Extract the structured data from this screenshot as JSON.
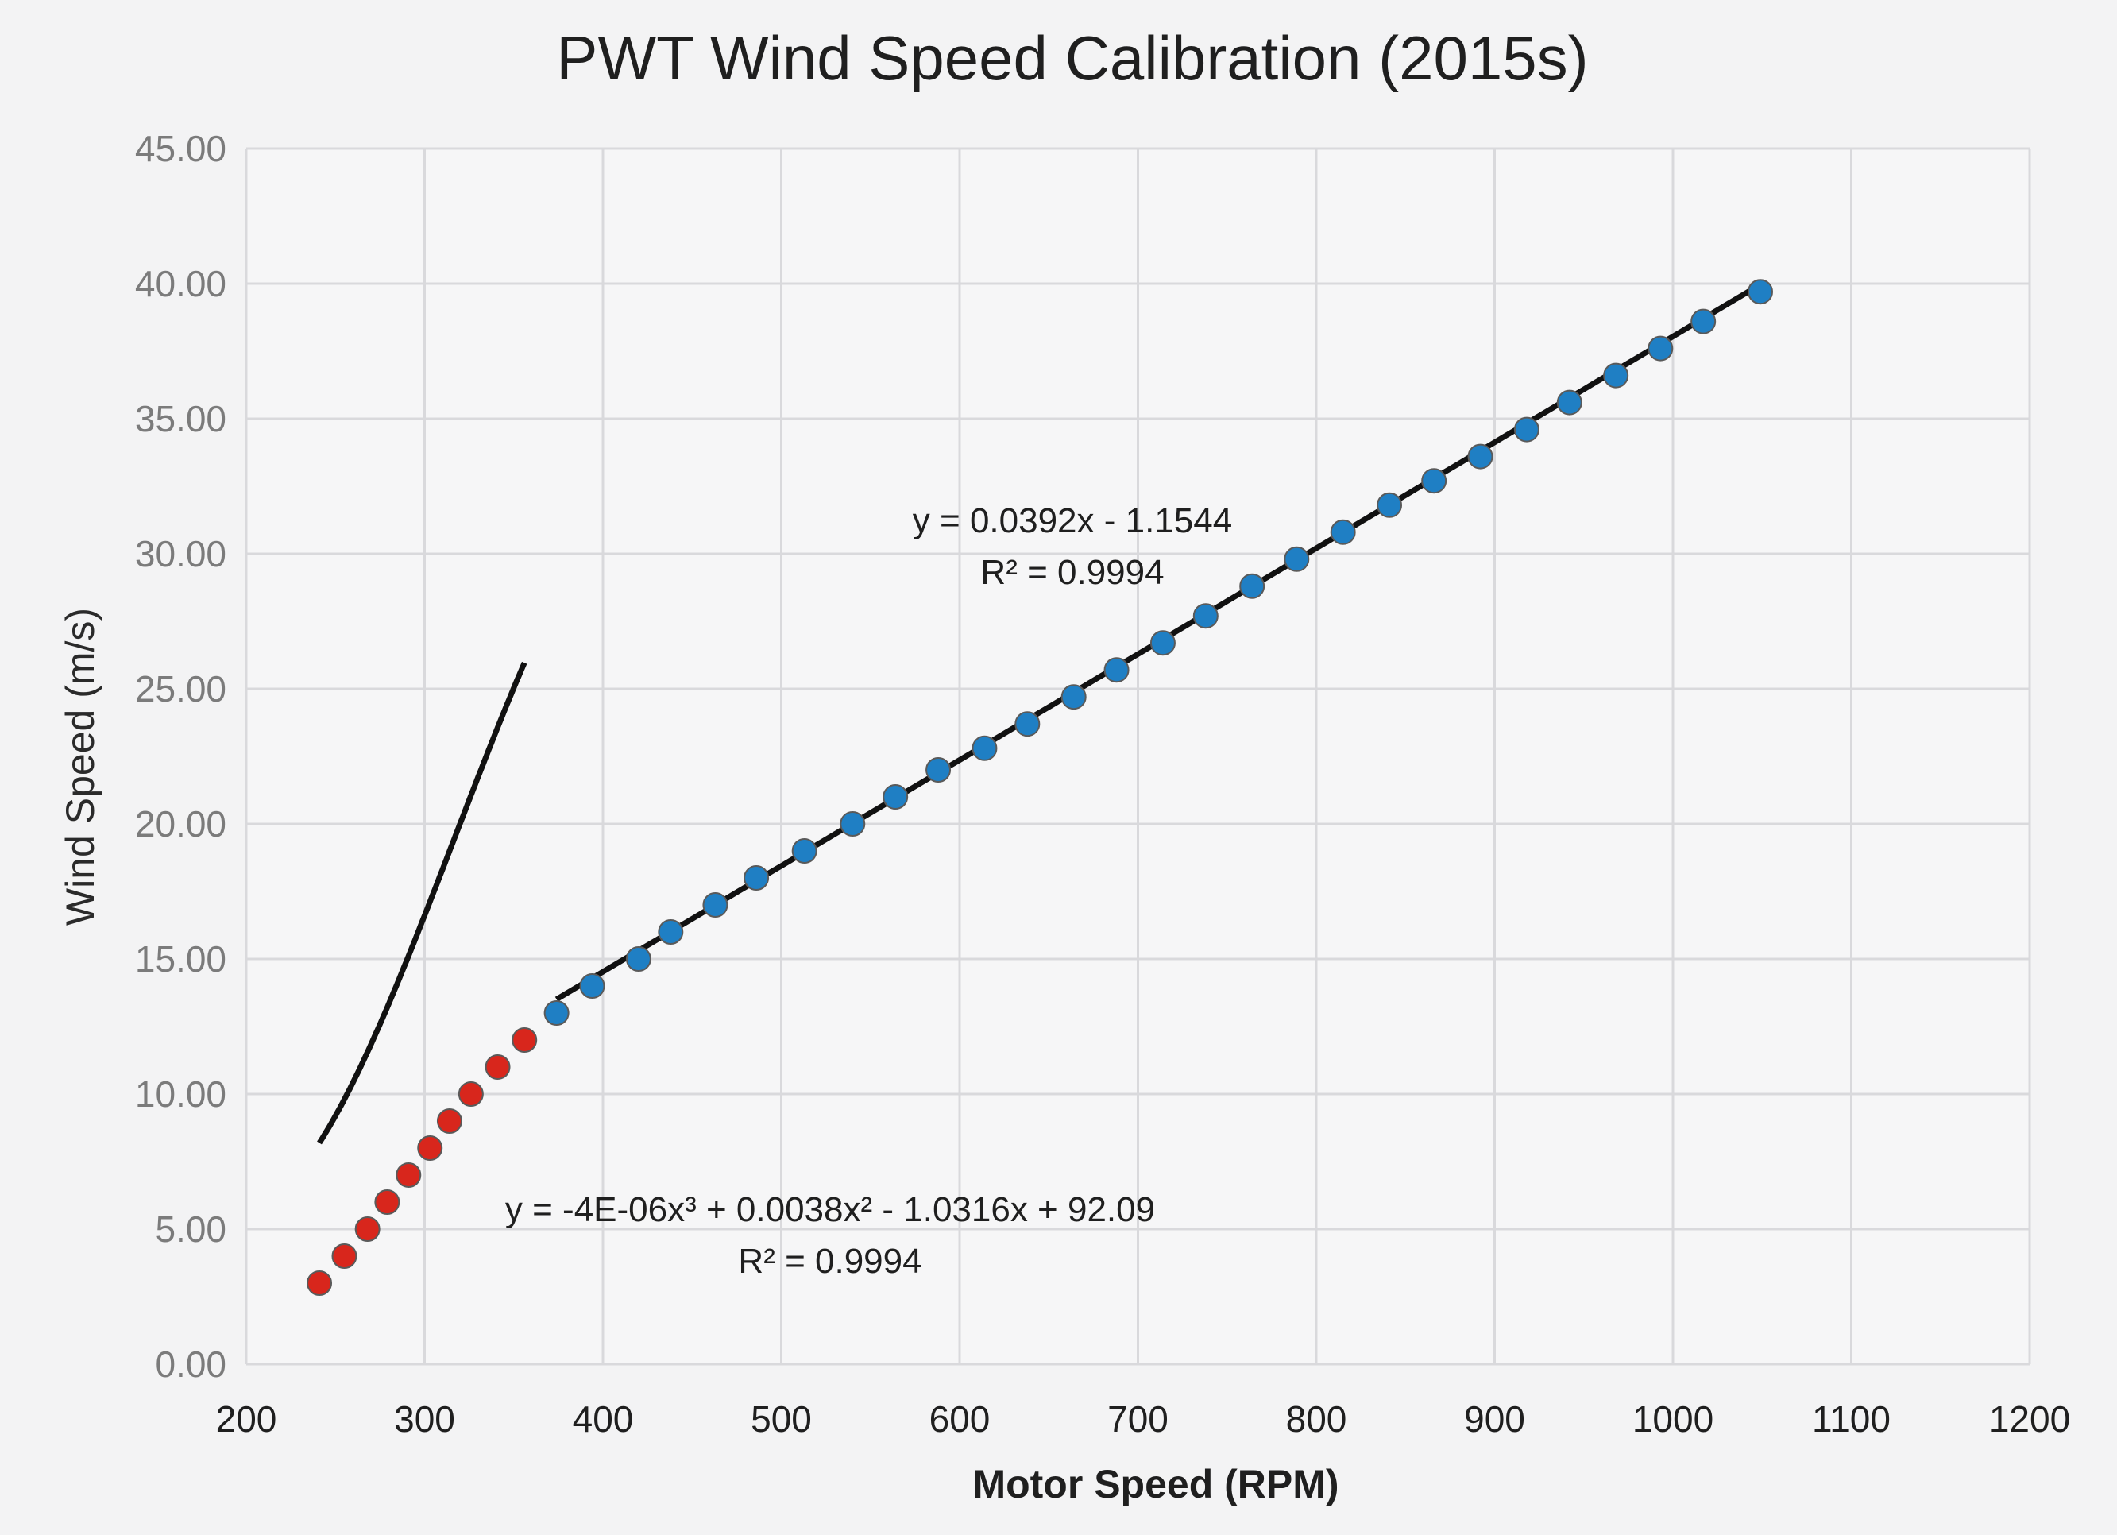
{
  "chart_data": {
    "type": "scatter",
    "title": "PWT Wind Speed Calibration (2015s)",
    "xlabel": "Motor Speed (RPM)",
    "ylabel": "Wind Speed (m/s)",
    "xlim": [
      200,
      1200
    ],
    "ylim": [
      0,
      45
    ],
    "x_ticks": [
      "200",
      "300",
      "400",
      "500",
      "600",
      "700",
      "800",
      "900",
      "1000",
      "1100",
      "1200"
    ],
    "y_ticks": [
      "0.00",
      "5.00",
      "10.00",
      "15.00",
      "20.00",
      "25.00",
      "30.00",
      "35.00",
      "40.00",
      "45.00"
    ],
    "grid": true,
    "series": [
      {
        "color": "#d8261c",
        "x": [
          241,
          255,
          268,
          279,
          291,
          303,
          314,
          326,
          341,
          356
        ],
        "y": [
          3.0,
          4.0,
          5.0,
          6.0,
          7.0,
          8.0,
          9.0,
          10.0,
          11.0,
          12.0
        ]
      },
      {
        "color": "#1f7fc4",
        "x": [
          374,
          394,
          420,
          438,
          463,
          486,
          513,
          540,
          564,
          588,
          614,
          638,
          664,
          688,
          714,
          738,
          764,
          789,
          815,
          841,
          866,
          892,
          918,
          942,
          968,
          993,
          1017,
          1049
        ],
        "y": [
          13.0,
          14.0,
          15.0,
          16.0,
          17.0,
          18.0,
          19.0,
          20.0,
          21.0,
          22.0,
          22.8,
          23.7,
          24.7,
          25.7,
          26.7,
          27.7,
          28.8,
          29.8,
          30.8,
          31.8,
          32.7,
          33.6,
          34.6,
          35.6,
          36.6,
          37.6,
          38.6,
          39.7
        ]
      }
    ],
    "trendlines": [
      {
        "kind": "polynomial",
        "coefficients": [
          92.09,
          -1.0316,
          0.0038,
          -4e-06
        ],
        "equation": "y = -4E-06x³ + 0.0038x² - 1.0316x + 92.09",
        "r_squared": "R² = 0.9994"
      },
      {
        "kind": "linear",
        "coefficients": [
          -1.1544,
          0.0392
        ],
        "equation": "y = 0.0392x - 1.1544",
        "r_squared": "R² = 0.9994"
      }
    ]
  }
}
